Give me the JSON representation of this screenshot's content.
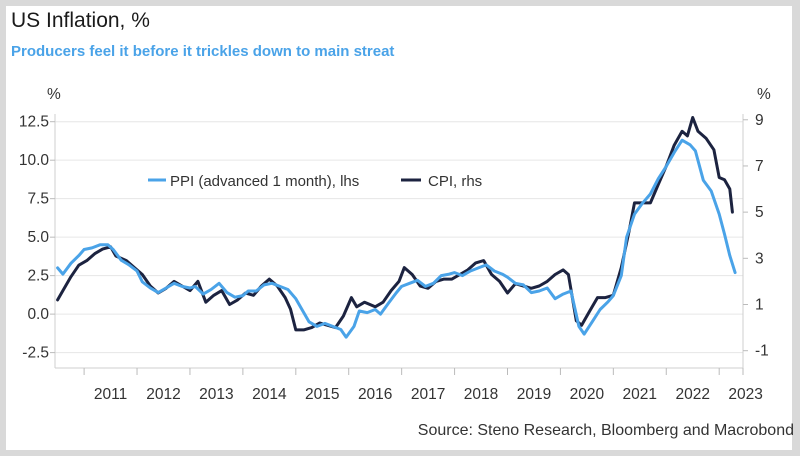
{
  "title": "US Inflation, %",
  "subtitle": "Producers feel it before it trickles down to main streat",
  "source": "Source: Steno Research, Bloomberg and Macrobond",
  "colors": {
    "ppi": "#4aa3e8",
    "cpi": "#1c2340",
    "subtitle": "#4aa3e8",
    "grid": "#e6e6e6"
  },
  "chart_data": {
    "type": "line",
    "title": "US Inflation, %",
    "subtitle": "Producers feel it before it trickles down to main streat",
    "left_axis": {
      "unit": "%",
      "ylim": [
        -3.5,
        13.0
      ],
      "ticks": [
        -2.5,
        0.0,
        2.5,
        5.0,
        7.5,
        10.0,
        12.5
      ],
      "tick_labels": [
        "-2.5",
        "0.0",
        "2.5",
        "5.0",
        "7.5",
        "10.0",
        "12.5"
      ]
    },
    "right_axis": {
      "unit": "%",
      "ylim": [
        -1.75,
        9.25
      ],
      "ticks": [
        -1,
        1,
        3,
        5,
        7,
        9
      ],
      "tick_labels": [
        "-1",
        "1",
        "3",
        "5",
        "7",
        "9"
      ]
    },
    "x_axis": {
      "xlim": [
        2010.45,
        2023.45
      ],
      "tick_labels": [
        "2011",
        "2012",
        "2013",
        "2014",
        "2015",
        "2016",
        "2017",
        "2018",
        "2019",
        "2020",
        "2021",
        "2022",
        "2023"
      ]
    },
    "legend": "upper-center, inside plot",
    "series": [
      {
        "name": "PPI (advanced 1 month), lhs",
        "axis": "left",
        "points": [
          [
            2010.5,
            3.0
          ],
          [
            2010.6,
            2.6
          ],
          [
            2010.75,
            3.3
          ],
          [
            2010.9,
            3.8
          ],
          [
            2011.0,
            4.2
          ],
          [
            2011.15,
            4.3
          ],
          [
            2011.3,
            4.5
          ],
          [
            2011.45,
            4.5
          ],
          [
            2011.55,
            4.2
          ],
          [
            2011.7,
            3.5
          ],
          [
            2011.85,
            3.2
          ],
          [
            2012.0,
            2.8
          ],
          [
            2012.1,
            2.1
          ],
          [
            2012.25,
            1.7
          ],
          [
            2012.4,
            1.4
          ],
          [
            2012.55,
            1.7
          ],
          [
            2012.7,
            2.0
          ],
          [
            2012.85,
            1.8
          ],
          [
            2013.0,
            1.7
          ],
          [
            2013.1,
            1.8
          ],
          [
            2013.25,
            1.3
          ],
          [
            2013.4,
            1.6
          ],
          [
            2013.55,
            2.0
          ],
          [
            2013.7,
            1.4
          ],
          [
            2013.85,
            1.1
          ],
          [
            2014.0,
            1.2
          ],
          [
            2014.1,
            1.5
          ],
          [
            2014.25,
            1.5
          ],
          [
            2014.4,
            1.9
          ],
          [
            2014.55,
            2.0
          ],
          [
            2014.7,
            1.8
          ],
          [
            2014.85,
            1.6
          ],
          [
            2015.0,
            1.0
          ],
          [
            2015.1,
            0.4
          ],
          [
            2015.25,
            -0.5
          ],
          [
            2015.4,
            -0.8
          ],
          [
            2015.55,
            -0.6
          ],
          [
            2015.7,
            -0.8
          ],
          [
            2015.85,
            -1.0
          ],
          [
            2015.95,
            -1.5
          ],
          [
            2016.1,
            -0.8
          ],
          [
            2016.2,
            0.2
          ],
          [
            2016.35,
            0.1
          ],
          [
            2016.5,
            0.3
          ],
          [
            2016.6,
            0.0
          ],
          [
            2016.75,
            0.7
          ],
          [
            2016.9,
            1.4
          ],
          [
            2017.0,
            1.8
          ],
          [
            2017.15,
            2.0
          ],
          [
            2017.3,
            2.2
          ],
          [
            2017.45,
            1.8
          ],
          [
            2017.6,
            2.0
          ],
          [
            2017.75,
            2.5
          ],
          [
            2017.9,
            2.6
          ],
          [
            2018.0,
            2.7
          ],
          [
            2018.15,
            2.5
          ],
          [
            2018.3,
            2.8
          ],
          [
            2018.45,
            3.0
          ],
          [
            2018.6,
            3.2
          ],
          [
            2018.75,
            2.8
          ],
          [
            2018.9,
            2.6
          ],
          [
            2019.0,
            2.4
          ],
          [
            2019.15,
            2.0
          ],
          [
            2019.3,
            1.9
          ],
          [
            2019.45,
            1.4
          ],
          [
            2019.6,
            1.5
          ],
          [
            2019.75,
            1.7
          ],
          [
            2019.9,
            1.0
          ],
          [
            2020.05,
            1.3
          ],
          [
            2020.2,
            1.5
          ],
          [
            2020.35,
            -0.8
          ],
          [
            2020.45,
            -1.3
          ],
          [
            2020.6,
            -0.5
          ],
          [
            2020.75,
            0.3
          ],
          [
            2020.9,
            0.8
          ],
          [
            2021.0,
            1.2
          ],
          [
            2021.15,
            2.5
          ],
          [
            2021.25,
            5.0
          ],
          [
            2021.4,
            6.5
          ],
          [
            2021.55,
            7.2
          ],
          [
            2021.7,
            7.8
          ],
          [
            2021.85,
            8.8
          ],
          [
            2022.0,
            9.6
          ],
          [
            2022.15,
            10.5
          ],
          [
            2022.3,
            11.3
          ],
          [
            2022.45,
            11.0
          ],
          [
            2022.55,
            10.6
          ],
          [
            2022.7,
            8.7
          ],
          [
            2022.85,
            8.0
          ],
          [
            2023.0,
            6.5
          ],
          [
            2023.1,
            5.2
          ],
          [
            2023.2,
            3.8
          ],
          [
            2023.3,
            2.7
          ]
        ]
      },
      {
        "name": "CPI, rhs",
        "axis": "right",
        "points": [
          [
            2010.5,
            1.2
          ],
          [
            2010.6,
            1.6
          ],
          [
            2010.75,
            2.2
          ],
          [
            2010.9,
            2.7
          ],
          [
            2011.05,
            2.9
          ],
          [
            2011.2,
            3.2
          ],
          [
            2011.35,
            3.4
          ],
          [
            2011.5,
            3.5
          ],
          [
            2011.6,
            3.1
          ],
          [
            2011.8,
            2.9
          ],
          [
            2011.95,
            2.6
          ],
          [
            2012.1,
            2.3
          ],
          [
            2012.25,
            1.8
          ],
          [
            2012.4,
            1.5
          ],
          [
            2012.55,
            1.7
          ],
          [
            2012.7,
            2.0
          ],
          [
            2012.85,
            1.8
          ],
          [
            2013.0,
            1.6
          ],
          [
            2013.15,
            2.0
          ],
          [
            2013.3,
            1.1
          ],
          [
            2013.45,
            1.4
          ],
          [
            2013.6,
            1.6
          ],
          [
            2013.75,
            1.0
          ],
          [
            2013.9,
            1.2
          ],
          [
            2014.05,
            1.5
          ],
          [
            2014.2,
            1.4
          ],
          [
            2014.35,
            1.8
          ],
          [
            2014.5,
            2.1
          ],
          [
            2014.65,
            1.8
          ],
          [
            2014.8,
            1.3
          ],
          [
            2014.9,
            0.8
          ],
          [
            2015.0,
            -0.1
          ],
          [
            2015.15,
            -0.1
          ],
          [
            2015.3,
            0.0
          ],
          [
            2015.45,
            0.2
          ],
          [
            2015.6,
            0.1
          ],
          [
            2015.75,
            0.0
          ],
          [
            2015.9,
            0.5
          ],
          [
            2016.05,
            1.3
          ],
          [
            2016.15,
            0.9
          ],
          [
            2016.3,
            1.1
          ],
          [
            2016.5,
            0.9
          ],
          [
            2016.65,
            1.1
          ],
          [
            2016.8,
            1.6
          ],
          [
            2016.95,
            2.0
          ],
          [
            2017.05,
            2.6
          ],
          [
            2017.2,
            2.3
          ],
          [
            2017.35,
            1.8
          ],
          [
            2017.5,
            1.7
          ],
          [
            2017.65,
            2.0
          ],
          [
            2017.8,
            2.1
          ],
          [
            2017.95,
            2.1
          ],
          [
            2018.1,
            2.3
          ],
          [
            2018.25,
            2.5
          ],
          [
            2018.4,
            2.8
          ],
          [
            2018.55,
            2.9
          ],
          [
            2018.7,
            2.3
          ],
          [
            2018.85,
            2.0
          ],
          [
            2019.0,
            1.5
          ],
          [
            2019.15,
            1.9
          ],
          [
            2019.3,
            1.8
          ],
          [
            2019.45,
            1.7
          ],
          [
            2019.6,
            1.8
          ],
          [
            2019.75,
            2.0
          ],
          [
            2019.9,
            2.3
          ],
          [
            2020.05,
            2.5
          ],
          [
            2020.15,
            2.3
          ],
          [
            2020.3,
            0.3
          ],
          [
            2020.4,
            0.1
          ],
          [
            2020.55,
            0.7
          ],
          [
            2020.7,
            1.3
          ],
          [
            2020.85,
            1.3
          ],
          [
            2021.0,
            1.4
          ],
          [
            2021.15,
            2.6
          ],
          [
            2021.3,
            4.2
          ],
          [
            2021.4,
            5.4
          ],
          [
            2021.55,
            5.4
          ],
          [
            2021.7,
            5.4
          ],
          [
            2021.85,
            6.2
          ],
          [
            2022.0,
            7.0
          ],
          [
            2022.15,
            7.9
          ],
          [
            2022.3,
            8.5
          ],
          [
            2022.4,
            8.3
          ],
          [
            2022.5,
            9.1
          ],
          [
            2022.6,
            8.5
          ],
          [
            2022.75,
            8.2
          ],
          [
            2022.9,
            7.7
          ],
          [
            2023.0,
            6.5
          ],
          [
            2023.1,
            6.4
          ],
          [
            2023.2,
            6.0
          ],
          [
            2023.25,
            5.0
          ]
        ]
      }
    ]
  }
}
